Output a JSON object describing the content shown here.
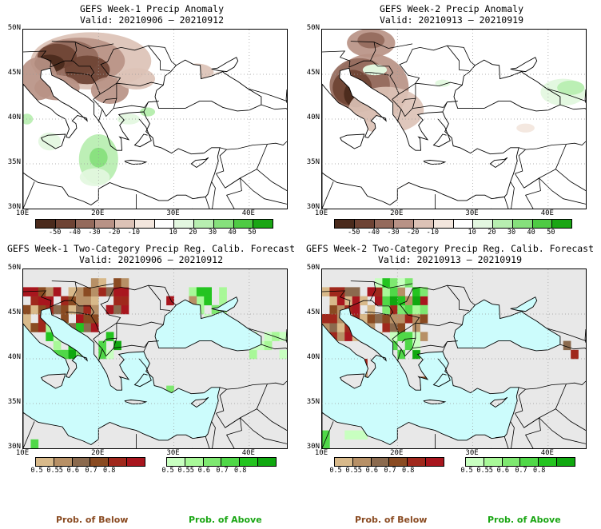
{
  "panels": [
    {
      "title": "GEFS Week-1 Precip Anomaly",
      "valid": "Valid: 20210906 – 20210912"
    },
    {
      "title": "GEFS Week-2 Precip Anomaly",
      "valid": "Valid: 20210913 – 20210919"
    },
    {
      "title": "GEFS Week-1 Two-Category Precip Reg. Calib. Forecast",
      "valid": "Valid: 20210906 – 20210912"
    },
    {
      "title": "GEFS Week-2 Two-Category Precip Reg. Calib. Forecast",
      "valid": "Valid: 20210913 – 20210919"
    }
  ],
  "axes": {
    "lat": [
      "50N",
      "45N",
      "40N",
      "35N",
      "30N"
    ],
    "lon": [
      "10E",
      "20E",
      "30E",
      "40E"
    ]
  },
  "anomaly_scale": {
    "ticks": [
      "-50",
      "-40",
      "-30",
      "-20",
      "-10",
      "10",
      "20",
      "30",
      "40",
      "50"
    ],
    "colors": [
      "#4a2a1c",
      "#6e4334",
      "#946a5c",
      "#b89286",
      "#dcc2b6",
      "#f3e6dd",
      "#ffffff",
      "#e3f7e0",
      "#b7eeb0",
      "#86e07c",
      "#4fcb44",
      "#1aa614"
    ]
  },
  "prob_scale": {
    "ticks": [
      "0.5",
      "0.55",
      "0.6",
      "0.7",
      "0.8"
    ],
    "below_colors": [
      "#d8b98a",
      "#b79066",
      "#8b6a4e",
      "#8a4b22",
      "#a0281c",
      "#a8161e"
    ],
    "above_colors": [
      "#c8ffc0",
      "#a8f898",
      "#7ee870",
      "#50d848",
      "#24c420",
      "#10a810"
    ]
  },
  "labels": {
    "below": "Prob. of Below",
    "above": "Prob. of Above"
  },
  "colors": {
    "sea": "#ccfcfc",
    "land_nodata": "#e8e8e8",
    "coast": "#000000"
  }
}
